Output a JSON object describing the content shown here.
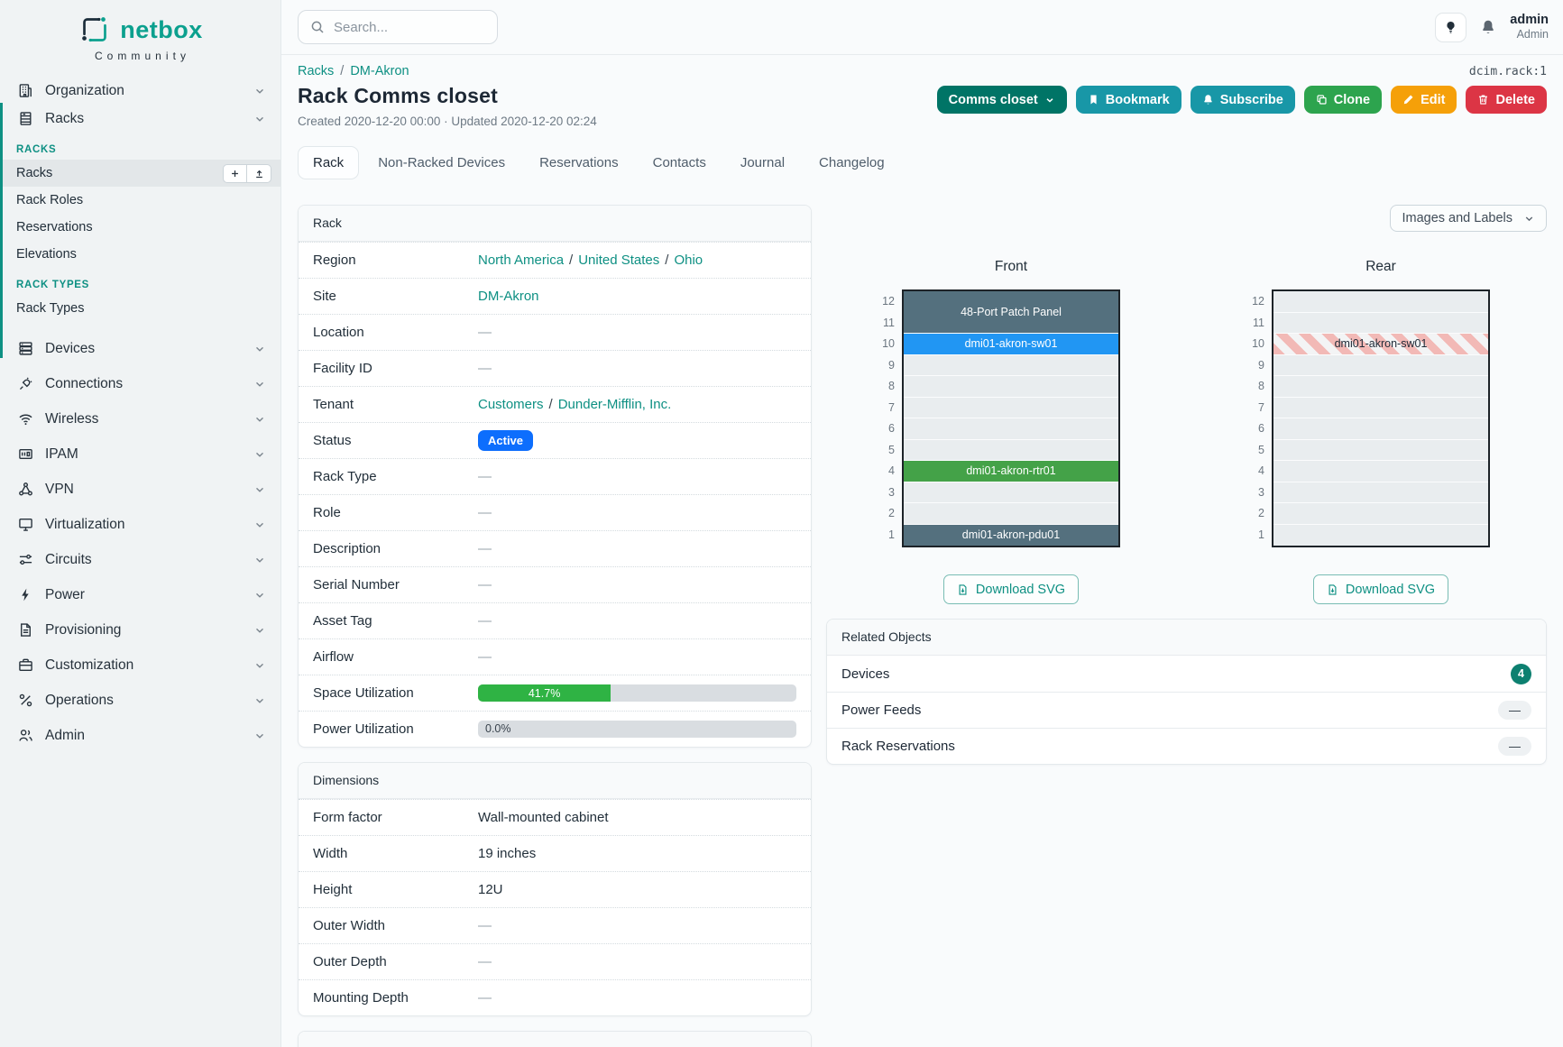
{
  "brand": {
    "name": "netbox",
    "tagline": "Community"
  },
  "topbar": {
    "search_placeholder": "Search...",
    "user_name": "admin",
    "user_role": "Admin"
  },
  "breadcrumb": {
    "racks": "Racks",
    "site": "DM-Akron",
    "object_id": "dcim.rack:1"
  },
  "ui": {
    "slash": "/"
  },
  "page": {
    "title": "Rack Comms closet",
    "meta": "Created 2020-12-20 00:00 · Updated 2020-12-20 02:24"
  },
  "actions": {
    "name_selector": "Comms closet",
    "bookmark": "Bookmark",
    "subscribe": "Subscribe",
    "clone": "Clone",
    "edit": "Edit",
    "delete": "Delete"
  },
  "tabs": {
    "rack": "Rack",
    "non_racked": "Non-Racked Devices",
    "reservations": "Reservations",
    "contacts": "Contacts",
    "journal": "Journal",
    "changelog": "Changelog"
  },
  "sidebar": {
    "top_items": [
      {
        "label": "Organization"
      },
      {
        "label": "Racks"
      }
    ],
    "racks_section": {
      "title": "RACKS",
      "items": [
        "Racks",
        "Rack Roles",
        "Reservations",
        "Elevations"
      ]
    },
    "rack_types_section": {
      "title": "RACK TYPES",
      "items": [
        "Rack Types"
      ]
    },
    "menu_items": [
      "Devices",
      "Connections",
      "Wireless",
      "IPAM",
      "VPN",
      "Virtualization",
      "Circuits",
      "Power",
      "Provisioning",
      "Customization",
      "Operations",
      "Admin"
    ]
  },
  "rack_panel": {
    "title": "Rack",
    "rows": {
      "region": {
        "label": "Region",
        "links": [
          "North America",
          "United States",
          "Ohio"
        ]
      },
      "site": {
        "label": "Site",
        "link": "DM-Akron"
      },
      "location": {
        "label": "Location",
        "value": "—"
      },
      "facility_id": {
        "label": "Facility ID",
        "value": "—"
      },
      "tenant": {
        "label": "Tenant",
        "links": [
          "Customers",
          "Dunder-Mifflin, Inc."
        ]
      },
      "status": {
        "label": "Status",
        "badge": "Active",
        "badge_color": "#0d6efd"
      },
      "rack_type": {
        "label": "Rack Type",
        "value": "—"
      },
      "role": {
        "label": "Role",
        "value": "—"
      },
      "description": {
        "label": "Description",
        "value": "—"
      },
      "serial_number": {
        "label": "Serial Number",
        "value": "—"
      },
      "asset_tag": {
        "label": "Asset Tag",
        "value": "—"
      },
      "airflow": {
        "label": "Airflow",
        "value": "—"
      },
      "space_utilization": {
        "label": "Space Utilization",
        "percent": 41.7,
        "text": "41.7%",
        "color": "#2fb344"
      },
      "power_utilization": {
        "label": "Power Utilization",
        "percent": 0,
        "text": "0.0%"
      }
    }
  },
  "dimensions_panel": {
    "title": "Dimensions",
    "rows": {
      "form_factor": {
        "label": "Form factor",
        "value": "Wall-mounted cabinet"
      },
      "width": {
        "label": "Width",
        "value": "19 inches"
      },
      "height": {
        "label": "Height",
        "value": "12U"
      },
      "outer_width": {
        "label": "Outer Width",
        "value": "—"
      },
      "outer_depth": {
        "label": "Outer Depth",
        "value": "—"
      },
      "mounting_depth": {
        "label": "Mounting Depth",
        "value": "—"
      }
    }
  },
  "elevations": {
    "view_selector": "Images and Labels",
    "download_label": "Download SVG",
    "unit_count": 12,
    "views": [
      {
        "title": "Front",
        "slots": [
          {
            "span": 2,
            "type": "device",
            "label": "48-Port Patch Panel",
            "color": "#54707e"
          },
          {
            "span": 1,
            "type": "device",
            "label": "dmi01-akron-sw01",
            "color": "#2196f3"
          },
          {
            "span": 5,
            "type": "empty"
          },
          {
            "span": 1,
            "type": "device",
            "label": "dmi01-akron-rtr01",
            "color": "#44a248"
          },
          {
            "span": 2,
            "type": "empty"
          },
          {
            "span": 1,
            "type": "device",
            "label": "dmi01-akron-pdu01",
            "color": "#54707e"
          }
        ]
      },
      {
        "title": "Rear",
        "slots": [
          {
            "span": 2,
            "type": "empty"
          },
          {
            "span": 1,
            "type": "reserved",
            "label": "dmi01-akron-sw01"
          },
          {
            "span": 9,
            "type": "empty"
          }
        ]
      }
    ]
  },
  "related_panel": {
    "title": "Related Objects",
    "rows": [
      {
        "label": "Devices",
        "count": "4"
      },
      {
        "label": "Power Feeds",
        "value": "—"
      },
      {
        "label": "Rack Reservations",
        "value": "—"
      }
    ]
  },
  "colors": {
    "accent_teal": "#0e9083",
    "button_primary": "#007466",
    "button_info": "#1897a7",
    "button_success": "#2da44e",
    "button_warning": "#f5a009",
    "button_danger": "#dc3545",
    "status_active": "#0d6efd",
    "progress_green": "#2fb344",
    "device_slate": "#54707e",
    "device_blue": "#2196f3",
    "device_green": "#44a248",
    "reserved_stripe": "#f2b9b6",
    "count_badge": "#0d8070"
  },
  "icons": [
    "netbox-logo",
    "search-icon",
    "lightbulb-icon",
    "bell-icon",
    "building-icon",
    "rack-icon",
    "server-icon",
    "plug-icon",
    "wifi-icon",
    "ipam-icon",
    "network-icon",
    "monitor-icon",
    "sliders-icon",
    "bolt-icon",
    "clipboard-icon",
    "briefcase-icon",
    "operations-icon",
    "users-icon",
    "chevron-down-icon",
    "plus-icon",
    "upload-icon",
    "bookmark-icon",
    "copy-icon",
    "pencil-icon",
    "trash-icon",
    "file-download-icon"
  ]
}
